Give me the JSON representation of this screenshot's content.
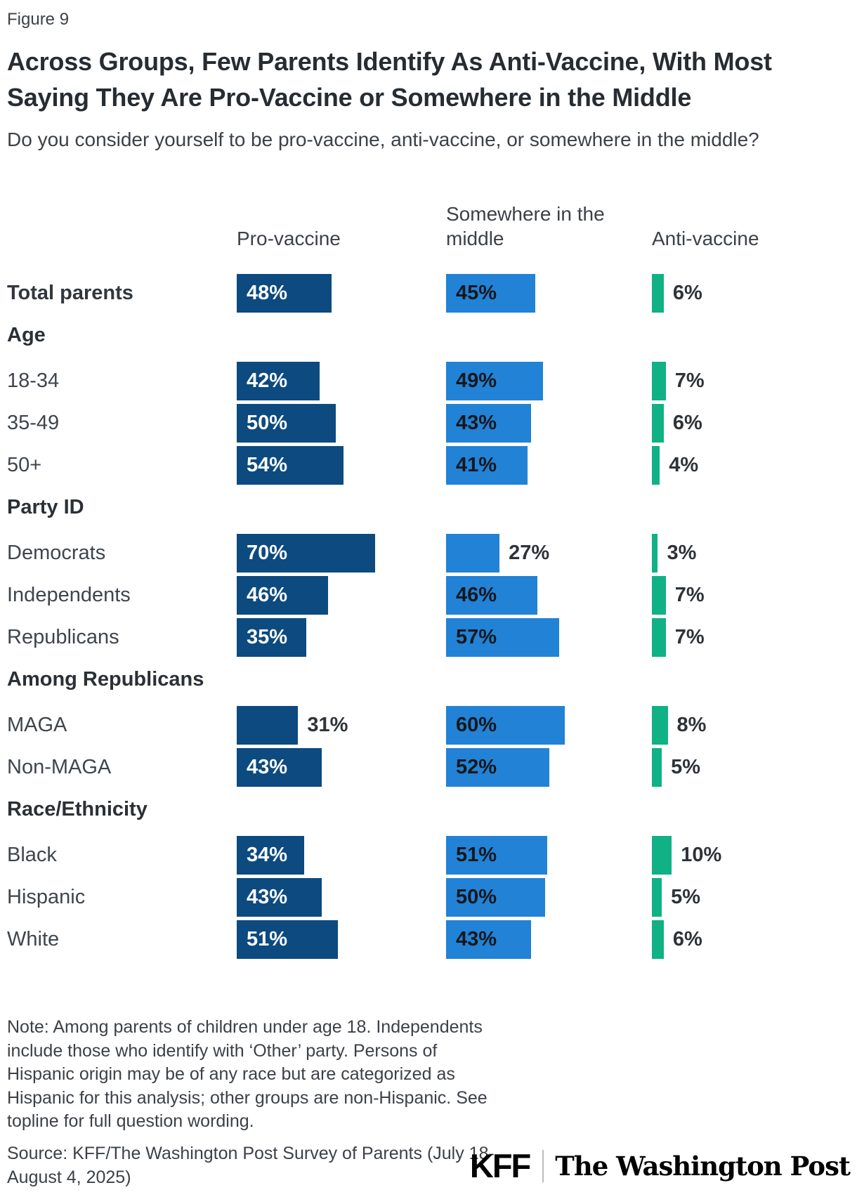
{
  "figure_label": "Figure 9",
  "title": "Across Groups, Few Parents Identify As Anti-Vaccine, With Most Saying They Are Pro-Vaccine or Somewhere in the Middle",
  "subtitle": "Do you consider yourself to be pro-vaccine, anti-vaccine, or somewhere in the middle?",
  "chart_data": {
    "type": "bar",
    "orientation": "horizontal",
    "unit": "%",
    "legend_position": "column headers above each bar column",
    "grid": false,
    "series": [
      {
        "name": "Pro-vaccine",
        "color": "#0c4a80",
        "inside_label_color": "#ffffff"
      },
      {
        "name": "Somewhere in the middle",
        "color": "#2282d5",
        "inside_label_color": "#14181d"
      },
      {
        "name": "Anti-vaccine",
        "color": "#10b185",
        "inside_label_color": "#2e3338"
      }
    ],
    "rows": [
      {
        "type": "data",
        "label": "Total parents",
        "bold_label": true,
        "values": [
          48,
          45,
          6
        ]
      },
      {
        "type": "section",
        "label": "Age"
      },
      {
        "type": "data",
        "label": "18-34",
        "values": [
          42,
          49,
          7
        ]
      },
      {
        "type": "data",
        "label": "35-49",
        "values": [
          50,
          43,
          6
        ]
      },
      {
        "type": "data",
        "label": "50+",
        "values": [
          54,
          41,
          4
        ]
      },
      {
        "type": "section",
        "label": "Party ID"
      },
      {
        "type": "data",
        "label": "Democrats",
        "values": [
          70,
          27,
          3
        ]
      },
      {
        "type": "data",
        "label": "Independents",
        "values": [
          46,
          46,
          7
        ]
      },
      {
        "type": "data",
        "label": "Republicans",
        "values": [
          35,
          57,
          7
        ]
      },
      {
        "type": "section",
        "label": "Among Republicans"
      },
      {
        "type": "data",
        "label": "MAGA",
        "values": [
          31,
          60,
          8
        ]
      },
      {
        "type": "data",
        "label": "Non-MAGA",
        "values": [
          43,
          52,
          5
        ]
      },
      {
        "type": "section",
        "label": "Race/Ethnicity"
      },
      {
        "type": "data",
        "label": "Black",
        "values": [
          34,
          51,
          10
        ]
      },
      {
        "type": "data",
        "label": "Hispanic",
        "values": [
          43,
          50,
          5
        ]
      },
      {
        "type": "data",
        "label": "White",
        "values": [
          51,
          43,
          6
        ]
      }
    ]
  },
  "note": "Note: Among parents of children under age 18. Independents include those who identify with ‘Other’ party. Persons of Hispanic origin may be of any race but are categorized as Hispanic for this analysis; other groups are non-Hispanic. See topline for full question wording.",
  "source": "Source: KFF/The Washington Post Survey of Parents (July 18-August 4, 2025)",
  "logos": {
    "kff": "KFF",
    "washington_post": "The Washington Post"
  }
}
